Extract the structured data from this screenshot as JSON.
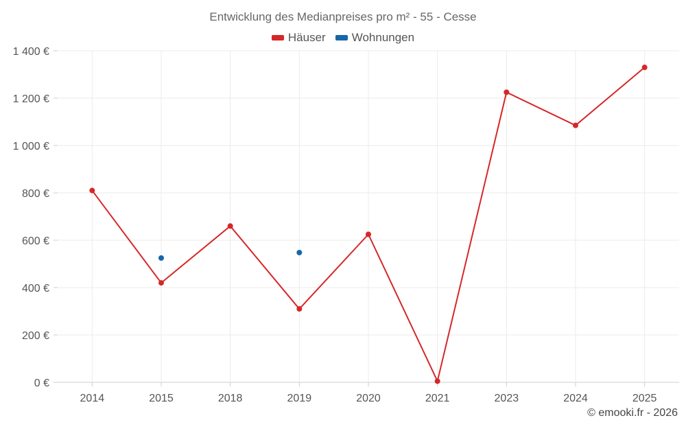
{
  "chart_data": {
    "type": "line",
    "title": "Entwicklung des Medianpreises pro m² - 55 - Cesse",
    "categories": [
      "2014",
      "2015",
      "2018",
      "2019",
      "2020",
      "2021",
      "2023",
      "2024",
      "2025"
    ],
    "series": [
      {
        "name": "Häuser",
        "color": "#d62728",
        "values": [
          810,
          420,
          660,
          310,
          625,
          5,
          1225,
          1085,
          1330
        ]
      },
      {
        "name": "Wohnungen",
        "color": "#1767a8",
        "values": [
          null,
          525,
          null,
          548,
          null,
          null,
          null,
          null,
          null
        ]
      }
    ],
    "ylim": [
      0,
      1400
    ],
    "yticks": [
      0,
      200,
      400,
      600,
      800,
      1000,
      1200,
      1400
    ],
    "ytick_labels": [
      "0 €",
      "200 €",
      "400 €",
      "600 €",
      "800 €",
      "1 000 €",
      "1 200 €",
      "1 400 €"
    ],
    "xlabel": "",
    "ylabel": "",
    "grid": true,
    "legend_position": "top-center"
  },
  "footer": "© emooki.fr - 2026"
}
